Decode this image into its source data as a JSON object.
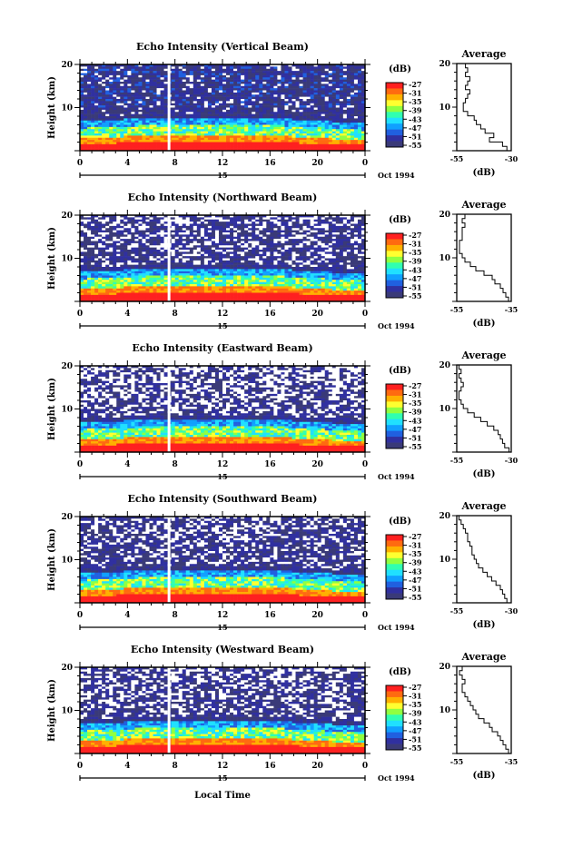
{
  "chart_data": {
    "type": "heatmap",
    "xlabel": "Local Time",
    "x_ticks": [
      "0",
      "4",
      "8",
      "12",
      "16",
      "20",
      "0"
    ],
    "date_line": {
      "day": "15",
      "month_year": "Oct 1994"
    },
    "colorbar": {
      "unit": "(dB)",
      "ticks": [
        "-27",
        "-31",
        "-35",
        "-39",
        "-43",
        "-47",
        "-51",
        "-55"
      ],
      "colors": [
        "#ff2020",
        "#ff6a10",
        "#ffb000",
        "#ffff30",
        "#90ff40",
        "#30ffb0",
        "#20e0ff",
        "#10a0ff",
        "#2060e0",
        "#3030a0",
        "#3a3a78"
      ]
    },
    "panels": [
      {
        "title": "Echo Intensity (Vertical Beam)",
        "ylabel": "Height (km)",
        "y_ticks": [
          "20",
          "10"
        ],
        "avg_title": "Average",
        "avg_xticks": [
          "-55",
          "-30"
        ],
        "avg_xlabel": "(dB)",
        "avg_range": [
          -55,
          -30
        ],
        "avg_profile": [
          {
            "h": 20,
            "db": -51
          },
          {
            "h": 19,
            "db": -50
          },
          {
            "h": 18,
            "db": -51
          },
          {
            "h": 17,
            "db": -49
          },
          {
            "h": 16,
            "db": -50
          },
          {
            "h": 15,
            "db": -51
          },
          {
            "h": 14,
            "db": -49
          },
          {
            "h": 13,
            "db": -50
          },
          {
            "h": 12,
            "db": -51
          },
          {
            "h": 11,
            "db": -52
          },
          {
            "h": 10,
            "db": -52
          },
          {
            "h": 9,
            "db": -50
          },
          {
            "h": 8,
            "db": -47
          },
          {
            "h": 7,
            "db": -46
          },
          {
            "h": 6,
            "db": -44
          },
          {
            "h": 5,
            "db": -42
          },
          {
            "h": 4,
            "db": -38
          },
          {
            "h": 3,
            "db": -40
          },
          {
            "h": 2,
            "db": -34
          },
          {
            "h": 1,
            "db": -32
          }
        ]
      },
      {
        "title": "Echo Intensity (Northward Beam)",
        "ylabel": "Height (km)",
        "y_ticks": [
          "20",
          "10"
        ],
        "avg_title": "Average",
        "avg_xticks": [
          "-55",
          "-35"
        ],
        "avg_xlabel": "(dB)",
        "avg_range": [
          -55,
          -35
        ],
        "avg_profile": [
          {
            "h": 20,
            "db": -52
          },
          {
            "h": 19,
            "db": -53
          },
          {
            "h": 18,
            "db": -52
          },
          {
            "h": 17,
            "db": -53
          },
          {
            "h": 16,
            "db": -53
          },
          {
            "h": 15,
            "db": -53
          },
          {
            "h": 14,
            "db": -54
          },
          {
            "h": 13,
            "db": -54
          },
          {
            "h": 12,
            "db": -54
          },
          {
            "h": 11,
            "db": -53
          },
          {
            "h": 10,
            "db": -52
          },
          {
            "h": 9,
            "db": -50
          },
          {
            "h": 8,
            "db": -48
          },
          {
            "h": 7,
            "db": -45
          },
          {
            "h": 6,
            "db": -42
          },
          {
            "h": 5,
            "db": -41
          },
          {
            "h": 4,
            "db": -39
          },
          {
            "h": 3,
            "db": -38
          },
          {
            "h": 2,
            "db": -37
          },
          {
            "h": 1,
            "db": -36
          }
        ]
      },
      {
        "title": "Echo Intensity (Eastward Beam)",
        "ylabel": "Height (km)",
        "y_ticks": [
          "20",
          "10"
        ],
        "avg_title": "Average",
        "avg_xticks": [
          "-55",
          "-30"
        ],
        "avg_xlabel": "(dB)",
        "avg_range": [
          -55,
          -30
        ],
        "avg_profile": [
          {
            "h": 20,
            "db": -54
          },
          {
            "h": 19,
            "db": -53
          },
          {
            "h": 18,
            "db": -54
          },
          {
            "h": 17,
            "db": -53
          },
          {
            "h": 16,
            "db": -52
          },
          {
            "h": 15,
            "db": -53
          },
          {
            "h": 14,
            "db": -54
          },
          {
            "h": 13,
            "db": -54
          },
          {
            "h": 12,
            "db": -53
          },
          {
            "h": 11,
            "db": -52
          },
          {
            "h": 10,
            "db": -50
          },
          {
            "h": 9,
            "db": -47
          },
          {
            "h": 8,
            "db": -44
          },
          {
            "h": 7,
            "db": -41
          },
          {
            "h": 6,
            "db": -38
          },
          {
            "h": 5,
            "db": -36
          },
          {
            "h": 4,
            "db": -35
          },
          {
            "h": 3,
            "db": -34
          },
          {
            "h": 2,
            "db": -33
          },
          {
            "h": 1,
            "db": -31
          }
        ]
      },
      {
        "title": "Echo Intensity (Southward Beam)",
        "ylabel": "Height (km)",
        "y_ticks": [
          "20",
          "10"
        ],
        "avg_title": "Average",
        "avg_xticks": [
          "-55",
          "-30"
        ],
        "avg_xlabel": "(dB)",
        "avg_range": [
          -55,
          -30
        ],
        "avg_profile": [
          {
            "h": 20,
            "db": -54
          },
          {
            "h": 19,
            "db": -53
          },
          {
            "h": 18,
            "db": -52
          },
          {
            "h": 17,
            "db": -51
          },
          {
            "h": 16,
            "db": -50
          },
          {
            "h": 15,
            "db": -50
          },
          {
            "h": 14,
            "db": -49
          },
          {
            "h": 13,
            "db": -48
          },
          {
            "h": 12,
            "db": -48
          },
          {
            "h": 11,
            "db": -47
          },
          {
            "h": 10,
            "db": -46
          },
          {
            "h": 9,
            "db": -45
          },
          {
            "h": 8,
            "db": -43
          },
          {
            "h": 7,
            "db": -41
          },
          {
            "h": 6,
            "db": -39
          },
          {
            "h": 5,
            "db": -37
          },
          {
            "h": 4,
            "db": -35
          },
          {
            "h": 3,
            "db": -34
          },
          {
            "h": 2,
            "db": -33
          },
          {
            "h": 1,
            "db": -32
          }
        ]
      },
      {
        "title": "Echo Intensity (Westward Beam)",
        "ylabel": "Height (km)",
        "y_ticks": [
          "20",
          "10"
        ],
        "avg_title": "Average",
        "avg_xticks": [
          "-55",
          "-35"
        ],
        "avg_xlabel": "(dB)",
        "avg_range": [
          -55,
          -35
        ],
        "avg_profile": [
          {
            "h": 20,
            "db": -53
          },
          {
            "h": 19,
            "db": -54
          },
          {
            "h": 18,
            "db": -53
          },
          {
            "h": 17,
            "db": -52
          },
          {
            "h": 16,
            "db": -53
          },
          {
            "h": 15,
            "db": -53
          },
          {
            "h": 14,
            "db": -52
          },
          {
            "h": 13,
            "db": -51
          },
          {
            "h": 12,
            "db": -50
          },
          {
            "h": 11,
            "db": -49
          },
          {
            "h": 10,
            "db": -48
          },
          {
            "h": 9,
            "db": -47
          },
          {
            "h": 8,
            "db": -45
          },
          {
            "h": 7,
            "db": -43
          },
          {
            "h": 6,
            "db": -42
          },
          {
            "h": 5,
            "db": -40
          },
          {
            "h": 4,
            "db": -39
          },
          {
            "h": 3,
            "db": -38
          },
          {
            "h": 2,
            "db": -37
          },
          {
            "h": 1,
            "db": -36
          }
        ]
      }
    ]
  }
}
